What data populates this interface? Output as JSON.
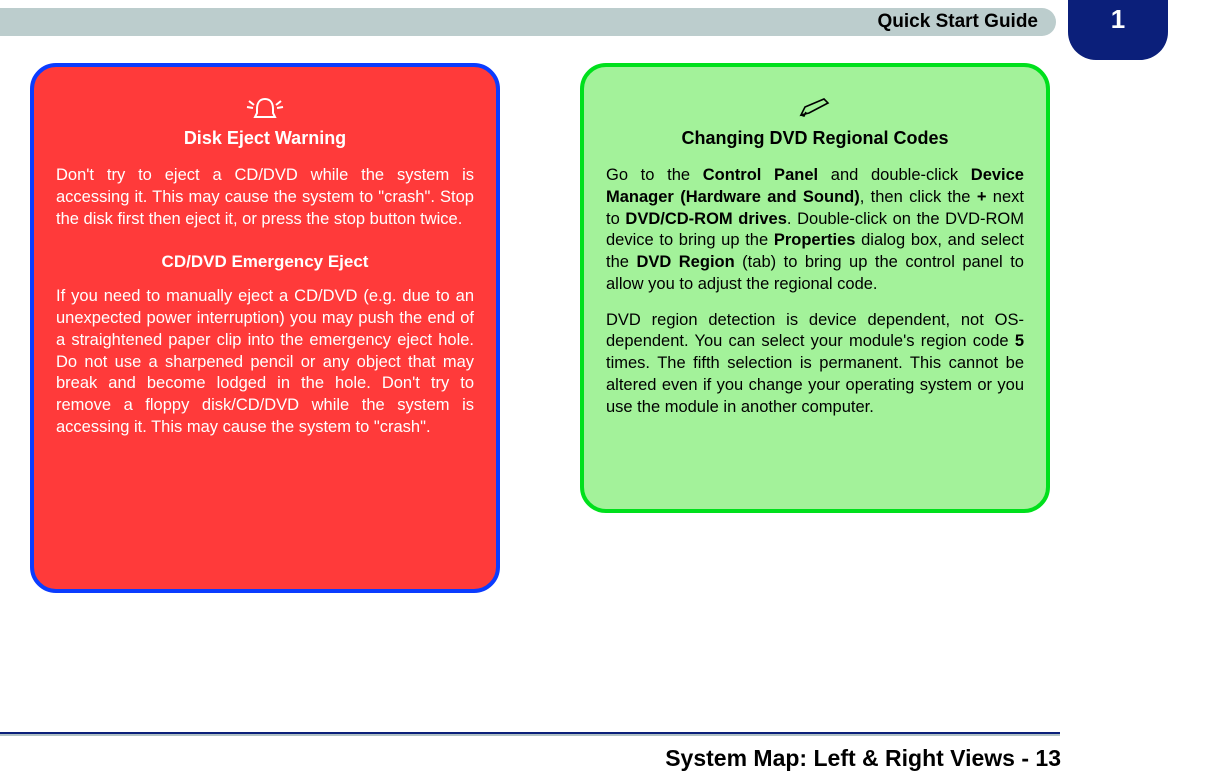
{
  "header": {
    "title": "Quick Start Guide",
    "tab_number": "1",
    "header_bg": "#bccdcd",
    "tab_bg": "#0b1f7a"
  },
  "warning_box": {
    "bg_color": "#ff3a3a",
    "border_color": "#0b3cff",
    "text_color": "#ffffff",
    "icon": "alarm-icon",
    "title1": "Disk Eject Warning",
    "body1": "Don't try to eject a CD/DVD while the system is accessing it. This may cause the system to \"crash\". Stop the disk first then eject it, or press the stop button twice.",
    "title2": "CD/DVD Emergency Eject",
    "body2": "If you need to manually eject a CD/DVD (e.g. due to an unexpected power interruption) you may push the end of a straightened paper clip into the emergency eject hole. Do not use a sharpened pencil or any object that may break and become lodged in the hole. Don't try to remove a floppy disk/CD/DVD while the system is accessing it. This may cause the system to \"crash\"."
  },
  "note_box": {
    "bg_color": "#a3f29a",
    "border_color": "#00e01c",
    "text_color": "#000000",
    "icon": "pencil-icon",
    "title": "Changing DVD Regional Codes",
    "body1_html": "Go to the <b>Control Panel</b> and double-click <b>Device Manager (Hardware and Sound)</b>, then click the <b>+</b> next to <b>DVD/CD-ROM drives</b>. Double-click on the DVD-ROM device to bring up the <b>Properties</b> dialog box, and select the <b>DVD Region</b> (tab) to bring up the control panel to allow you to adjust the regional code.",
    "body2_html": "DVD region detection is device dependent, not OS-dependent. You can select your module's region code <b>5</b> times. The fifth selection is permanent. This cannot be altered even if you change your operating system or you use the module in another computer."
  },
  "footer": {
    "title": "System Map: Left & Right Views - 13",
    "rule_color": "#b0c1c4",
    "rule_accent": "#0b1f7a"
  }
}
